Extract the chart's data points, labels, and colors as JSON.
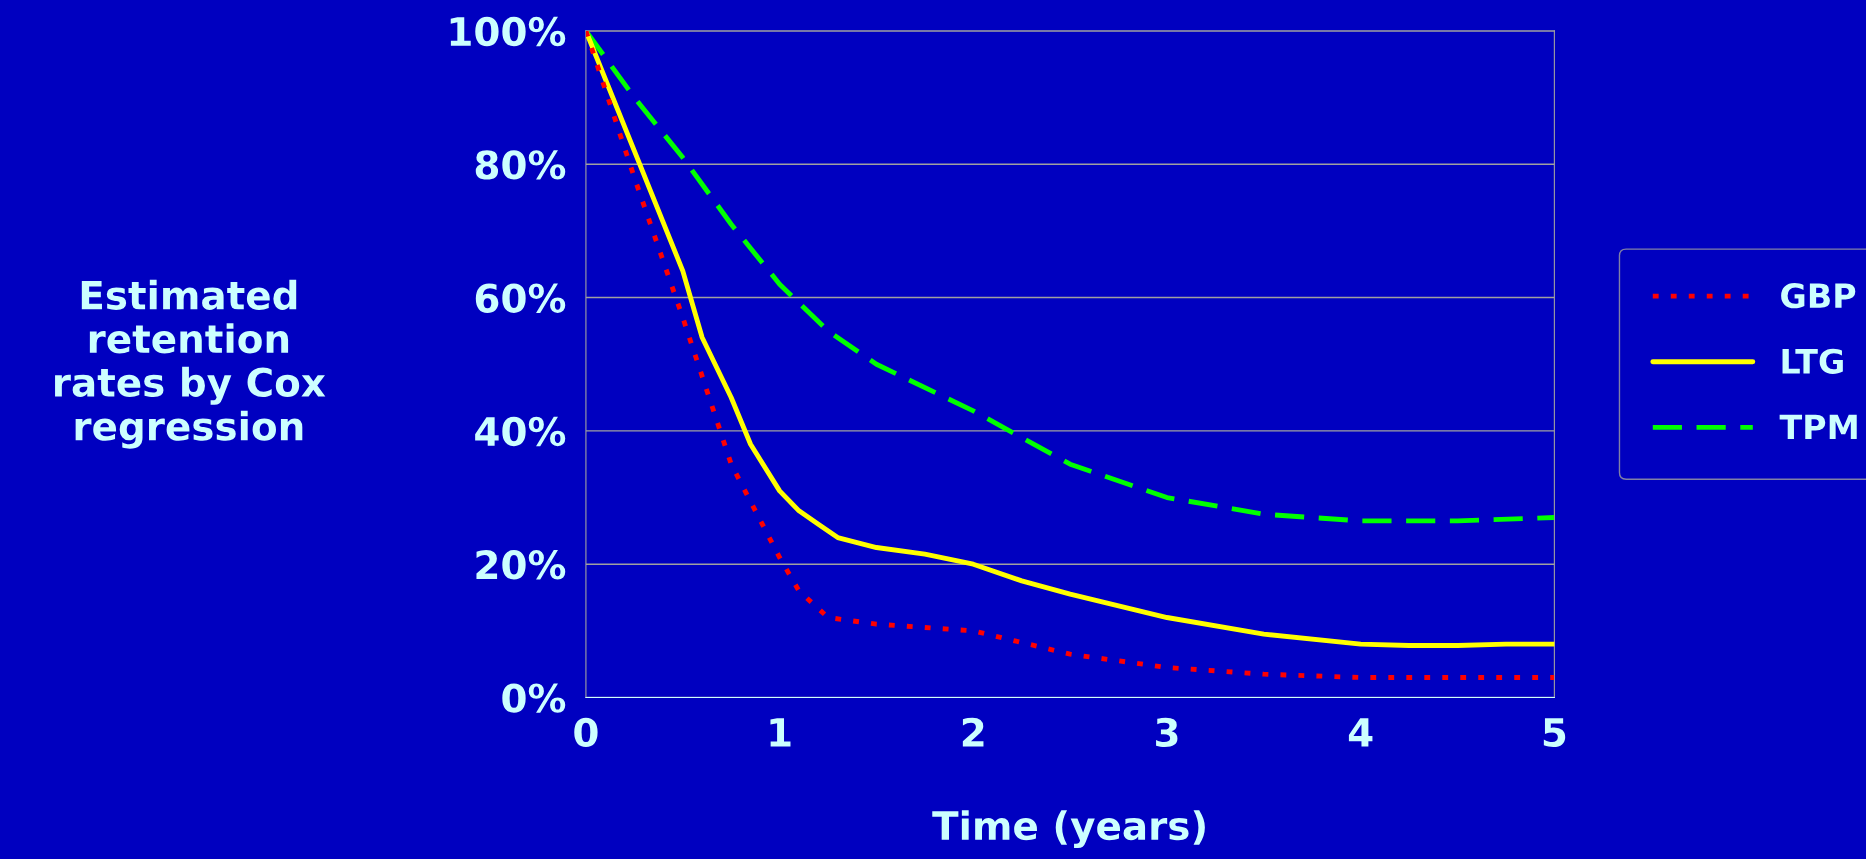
{
  "chart_data": {
    "type": "line",
    "xlabel": "Time (years)",
    "ylabel": "Estimated\nretention\nrates by Cox\nregression",
    "xlim": [
      0,
      5
    ],
    "xticks": [
      0,
      1,
      2,
      3,
      4,
      5
    ],
    "ylim": [
      0,
      100
    ],
    "yticks": [
      {
        "value": 0,
        "label": "0%"
      },
      {
        "value": 20,
        "label": "20%"
      },
      {
        "value": 40,
        "label": "40%"
      },
      {
        "value": 60,
        "label": "60%"
      },
      {
        "value": 80,
        "label": "80%"
      },
      {
        "value": 100,
        "label": "100%"
      }
    ],
    "grid": "y",
    "legend": "right",
    "series": [
      {
        "name": "GBP",
        "color": "#ff0000",
        "line_style": "dotted",
        "x": [
          0,
          0.25,
          0.5,
          0.75,
          1.0,
          1.1,
          1.25,
          1.5,
          2,
          2.5,
          3,
          3.5,
          4,
          5
        ],
        "values": [
          100,
          78,
          57,
          35,
          21,
          16,
          12,
          11,
          10,
          6.5,
          4.5,
          3.5,
          3,
          3
        ]
      },
      {
        "name": "LTG",
        "color": "#ffff00",
        "line_style": "solid",
        "x": [
          0,
          0.25,
          0.5,
          0.6,
          0.75,
          0.85,
          1,
          1.1,
          1.2,
          1.3,
          1.5,
          1.75,
          2,
          2.25,
          2.5,
          3,
          3.5,
          4,
          4.25,
          4.5,
          4.75,
          5
        ],
        "values": [
          100,
          82,
          64,
          54,
          45,
          38,
          31,
          28,
          26,
          24,
          22.5,
          21.5,
          20,
          17.5,
          15.5,
          12,
          9.5,
          8,
          7.8,
          7.8,
          8,
          8
        ]
      },
      {
        "name": "TPM",
        "color": "#00ff00",
        "line_style": "dashed",
        "x": [
          0,
          0.25,
          0.5,
          0.75,
          1,
          1.25,
          1.5,
          2,
          2.5,
          3,
          3.5,
          4,
          4.5,
          5
        ],
        "values": [
          100,
          90,
          81,
          71,
          62,
          55,
          50,
          43,
          35,
          30,
          27.5,
          26.5,
          26.5,
          27
        ]
      }
    ]
  }
}
